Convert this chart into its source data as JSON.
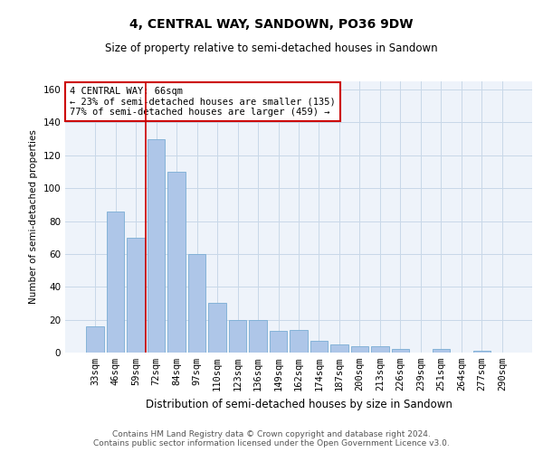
{
  "title": "4, CENTRAL WAY, SANDOWN, PO36 9DW",
  "subtitle": "Size of property relative to semi-detached houses in Sandown",
  "xlabel": "Distribution of semi-detached houses by size in Sandown",
  "ylabel": "Number of semi-detached properties",
  "categories": [
    "33sqm",
    "46sqm",
    "59sqm",
    "72sqm",
    "84sqm",
    "97sqm",
    "110sqm",
    "123sqm",
    "136sqm",
    "149sqm",
    "162sqm",
    "174sqm",
    "187sqm",
    "200sqm",
    "213sqm",
    "226sqm",
    "239sqm",
    "251sqm",
    "264sqm",
    "277sqm",
    "290sqm"
  ],
  "values": [
    16,
    86,
    70,
    130,
    110,
    60,
    30,
    20,
    20,
    13,
    14,
    7,
    5,
    4,
    4,
    2,
    0,
    2,
    0,
    1,
    0
  ],
  "bar_color": "#aec6e8",
  "bar_edge_color": "#7aadd4",
  "grid_color": "#c8d8e8",
  "background_color": "#eef3fa",
  "vline_color": "#cc0000",
  "vline_x": 2.5,
  "annotation_text": "4 CENTRAL WAY: 66sqm\n← 23% of semi-detached houses are smaller (135)\n77% of semi-detached houses are larger (459) →",
  "annotation_box_color": "#cc0000",
  "footer_line1": "Contains HM Land Registry data © Crown copyright and database right 2024.",
  "footer_line2": "Contains public sector information licensed under the Open Government Licence v3.0.",
  "ylim": [
    0,
    165
  ],
  "yticks": [
    0,
    20,
    40,
    60,
    80,
    100,
    120,
    140,
    160
  ],
  "title_fontsize": 10,
  "subtitle_fontsize": 8.5,
  "xlabel_fontsize": 8.5,
  "ylabel_fontsize": 7.5,
  "tick_fontsize": 7.5,
  "annot_fontsize": 7.5,
  "footer_fontsize": 6.5
}
